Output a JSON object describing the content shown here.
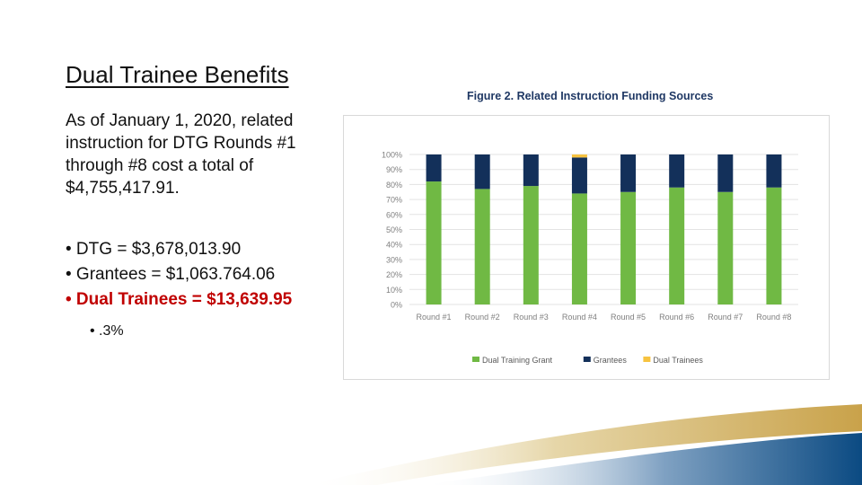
{
  "slide": {
    "title": "Dual Trainee Benefits",
    "paragraph": "As of January 1, 2020, related instruction for DTG Rounds #1 through #8 cost a total of $4,755,417.91.",
    "bullets": [
      "• DTG = $3,678,013.90",
      "• Grantees = $1,063.764.06",
      "• Dual Trainees = $13,639.95"
    ],
    "sub_bullet": "• .3%"
  },
  "figure": {
    "title": "Figure 2. Related Instruction Funding Sources"
  },
  "chart_data": {
    "type": "bar",
    "stacked": true,
    "title": "Figure 2. Related Instruction Funding Sources",
    "categories": [
      "Round #1",
      "Round #2",
      "Round #3",
      "Round #4",
      "Round #5",
      "Round #6",
      "Round #7",
      "Round #8"
    ],
    "series": [
      {
        "name": "Dual Training Grant",
        "color": "#70b944",
        "values": [
          82,
          77,
          79,
          74,
          75,
          78,
          75,
          78
        ]
      },
      {
        "name": "Grantees",
        "color": "#13305a",
        "values": [
          18,
          23,
          21,
          24,
          25,
          22,
          25,
          22
        ]
      },
      {
        "name": "Dual Trainees",
        "color": "#f7c340",
        "values": [
          0,
          0,
          0,
          2,
          0,
          0,
          0,
          0
        ]
      }
    ],
    "y_ticks": [
      "0%",
      "10%",
      "20%",
      "30%",
      "40%",
      "50%",
      "60%",
      "70%",
      "80%",
      "90%",
      "100%"
    ],
    "ylim": [
      0,
      100
    ],
    "grid": true,
    "legend_position": "bottom"
  }
}
